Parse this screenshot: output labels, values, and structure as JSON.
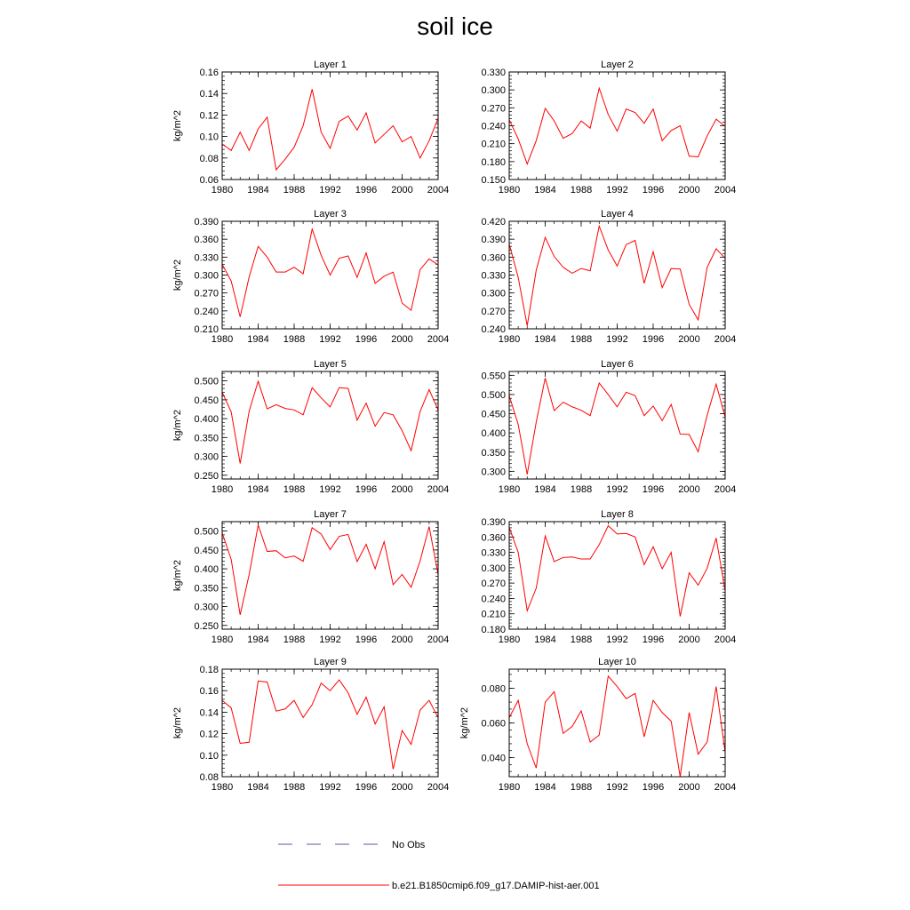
{
  "title": "soil ice",
  "legend": {
    "entries": [
      {
        "label": "No Obs",
        "color": "#5a5aa8",
        "style": "dashed"
      },
      {
        "label": "b.e21.B1850cmip6.f09_g17.DAMIP-hist-aer.001",
        "color": "#ff0000",
        "style": "solid"
      }
    ]
  },
  "chart_data": [
    {
      "type": "line",
      "title": "Layer 1",
      "ylabel": "kg/m^2",
      "xlim": [
        1980,
        2004
      ],
      "ylim": [
        0.06,
        0.16
      ],
      "x_ticks": [
        "1980",
        "1984",
        "1988",
        "1992",
        "1996",
        "2000",
        "2004"
      ],
      "y_ticks": [
        "0.06",
        "0.08",
        "0.10",
        "0.12",
        "0.14",
        "0.16"
      ],
      "x": [
        1980,
        1981,
        1982,
        1983,
        1984,
        1985,
        1986,
        1987,
        1988,
        1989,
        1990,
        1991,
        1992,
        1993,
        1994,
        1995,
        1996,
        1997,
        1998,
        1999,
        2000,
        2001,
        2002,
        2003,
        2004
      ],
      "series": [
        {
          "name": "b.e21.B1850cmip6.f09_g17.DAMIP-hist-aer.001",
          "color": "#ff0000",
          "values": [
            0.093,
            0.087,
            0.104,
            0.087,
            0.107,
            0.118,
            0.069,
            0.079,
            0.09,
            0.11,
            0.144,
            0.104,
            0.089,
            0.114,
            0.119,
            0.106,
            0.122,
            0.094,
            0.102,
            0.11,
            0.095,
            0.1,
            0.08,
            0.096,
            0.117
          ]
        }
      ]
    },
    {
      "type": "line",
      "title": "Layer 2",
      "ylabel": "",
      "xlim": [
        1980,
        2004
      ],
      "ylim": [
        0.15,
        0.33
      ],
      "x_ticks": [
        "1980",
        "1984",
        "1988",
        "1992",
        "1996",
        "2000",
        "2004"
      ],
      "y_ticks": [
        "0.150",
        "0.180",
        "0.210",
        "0.240",
        "0.270",
        "0.300",
        "0.330"
      ],
      "x": [
        1980,
        1981,
        1982,
        1983,
        1984,
        1985,
        1986,
        1987,
        1988,
        1989,
        1990,
        1991,
        1992,
        1993,
        1994,
        1995,
        1996,
        1997,
        1998,
        1999,
        2000,
        2001,
        2002,
        2003,
        2004
      ],
      "series": [
        {
          "name": "b.e21.B1850cmip6.f09_g17.DAMIP-hist-aer.001",
          "color": "#ff0000",
          "values": [
            0.25,
            0.218,
            0.176,
            0.215,
            0.269,
            0.248,
            0.219,
            0.227,
            0.248,
            0.236,
            0.303,
            0.259,
            0.231,
            0.268,
            0.262,
            0.244,
            0.268,
            0.215,
            0.232,
            0.24,
            0.189,
            0.188,
            0.223,
            0.251,
            0.239
          ]
        }
      ]
    },
    {
      "type": "line",
      "title": "Layer 3",
      "ylabel": "kg/m^2",
      "xlim": [
        1980,
        2004
      ],
      "ylim": [
        0.21,
        0.39
      ],
      "x_ticks": [
        "1980",
        "1984",
        "1988",
        "1992",
        "1996",
        "2000",
        "2004"
      ],
      "y_ticks": [
        "0.210",
        "0.240",
        "0.270",
        "0.300",
        "0.330",
        "0.360",
        "0.390"
      ],
      "x": [
        1980,
        1981,
        1982,
        1983,
        1984,
        1985,
        1986,
        1987,
        1988,
        1989,
        1990,
        1991,
        1992,
        1993,
        1994,
        1995,
        1996,
        1997,
        1998,
        1999,
        2000,
        2001,
        2002,
        2003,
        2004
      ],
      "series": [
        {
          "name": "b.e21.B1850cmip6.f09_g17.DAMIP-hist-aer.001",
          "color": "#ff0000",
          "values": [
            0.318,
            0.29,
            0.23,
            0.297,
            0.348,
            0.33,
            0.305,
            0.305,
            0.313,
            0.302,
            0.377,
            0.333,
            0.3,
            0.328,
            0.332,
            0.296,
            0.337,
            0.286,
            0.298,
            0.305,
            0.253,
            0.241,
            0.309,
            0.327,
            0.317
          ]
        }
      ]
    },
    {
      "type": "line",
      "title": "Layer 4",
      "ylabel": "",
      "xlim": [
        1980,
        2004
      ],
      "ylim": [
        0.24,
        0.42
      ],
      "x_ticks": [
        "1980",
        "1984",
        "1988",
        "1992",
        "1996",
        "2000",
        "2004"
      ],
      "y_ticks": [
        "0.240",
        "0.270",
        "0.300",
        "0.330",
        "0.360",
        "0.390",
        "0.420"
      ],
      "x": [
        1980,
        1981,
        1982,
        1983,
        1984,
        1985,
        1986,
        1987,
        1988,
        1989,
        1990,
        1991,
        1992,
        1993,
        1994,
        1995,
        1996,
        1997,
        1998,
        1999,
        2000,
        2001,
        2002,
        2003,
        2004
      ],
      "series": [
        {
          "name": "b.e21.B1850cmip6.f09_g17.DAMIP-hist-aer.001",
          "color": "#ff0000",
          "values": [
            0.382,
            0.326,
            0.245,
            0.338,
            0.393,
            0.361,
            0.343,
            0.333,
            0.341,
            0.337,
            0.412,
            0.372,
            0.345,
            0.381,
            0.388,
            0.316,
            0.369,
            0.309,
            0.341,
            0.34,
            0.281,
            0.255,
            0.343,
            0.374,
            0.358
          ]
        }
      ]
    },
    {
      "type": "line",
      "title": "Layer 5",
      "ylabel": "kg/m^2",
      "xlim": [
        1980,
        2004
      ],
      "ylim": [
        0.24,
        0.525
      ],
      "x_ticks": [
        "1980",
        "1984",
        "1988",
        "1992",
        "1996",
        "2000",
        "2004"
      ],
      "y_ticks": [
        "0.250",
        "0.300",
        "0.350",
        "0.400",
        "0.450",
        "0.500"
      ],
      "x": [
        1980,
        1981,
        1982,
        1983,
        1984,
        1985,
        1986,
        1987,
        1988,
        1989,
        1990,
        1991,
        1992,
        1993,
        1994,
        1995,
        1996,
        1997,
        1998,
        1999,
        2000,
        2001,
        2002,
        2003,
        2004
      ],
      "series": [
        {
          "name": "b.e21.B1850cmip6.f09_g17.DAMIP-hist-aer.001",
          "color": "#ff0000",
          "values": [
            0.47,
            0.418,
            0.281,
            0.42,
            0.499,
            0.426,
            0.437,
            0.427,
            0.423,
            0.41,
            0.482,
            0.455,
            0.431,
            0.482,
            0.48,
            0.396,
            0.441,
            0.38,
            0.416,
            0.41,
            0.368,
            0.315,
            0.419,
            0.477,
            0.423
          ]
        }
      ]
    },
    {
      "type": "line",
      "title": "Layer 6",
      "ylabel": "",
      "xlim": [
        1980,
        2004
      ],
      "ylim": [
        0.28,
        0.56
      ],
      "x_ticks": [
        "1980",
        "1984",
        "1988",
        "1992",
        "1996",
        "2000",
        "2004"
      ],
      "y_ticks": [
        "0.300",
        "0.350",
        "0.400",
        "0.450",
        "0.500",
        "0.550"
      ],
      "x": [
        1980,
        1981,
        1982,
        1983,
        1984,
        1985,
        1986,
        1987,
        1988,
        1989,
        1990,
        1991,
        1992,
        1993,
        1994,
        1995,
        1996,
        1997,
        1998,
        1999,
        2000,
        2001,
        2002,
        2003,
        2004
      ],
      "series": [
        {
          "name": "b.e21.B1850cmip6.f09_g17.DAMIP-hist-aer.001",
          "color": "#ff0000",
          "values": [
            0.497,
            0.422,
            0.292,
            0.428,
            0.543,
            0.458,
            0.48,
            0.468,
            0.459,
            0.445,
            0.53,
            0.5,
            0.468,
            0.506,
            0.497,
            0.445,
            0.47,
            0.432,
            0.474,
            0.397,
            0.396,
            0.351,
            0.446,
            0.527,
            0.441
          ]
        }
      ]
    },
    {
      "type": "line",
      "title": "Layer 7",
      "ylabel": "kg/m^2",
      "xlim": [
        1980,
        2004
      ],
      "ylim": [
        0.24,
        0.525
      ],
      "x_ticks": [
        "1980",
        "1984",
        "1988",
        "1992",
        "1996",
        "2000",
        "2004"
      ],
      "y_ticks": [
        "0.250",
        "0.300",
        "0.350",
        "0.400",
        "0.450",
        "0.500"
      ],
      "x": [
        1980,
        1981,
        1982,
        1983,
        1984,
        1985,
        1986,
        1987,
        1988,
        1989,
        1990,
        1991,
        1992,
        1993,
        1994,
        1995,
        1996,
        1997,
        1998,
        1999,
        2000,
        2001,
        2002,
        2003,
        2004
      ],
      "series": [
        {
          "name": "b.e21.B1850cmip6.f09_g17.DAMIP-hist-aer.001",
          "color": "#ff0000",
          "values": [
            0.495,
            0.425,
            0.278,
            0.385,
            0.516,
            0.446,
            0.448,
            0.429,
            0.434,
            0.42,
            0.509,
            0.492,
            0.451,
            0.486,
            0.491,
            0.419,
            0.465,
            0.4,
            0.472,
            0.358,
            0.385,
            0.351,
            0.421,
            0.512,
            0.385
          ]
        }
      ]
    },
    {
      "type": "line",
      "title": "Layer 8",
      "ylabel": "",
      "xlim": [
        1980,
        2004
      ],
      "ylim": [
        0.18,
        0.39
      ],
      "x_ticks": [
        "1980",
        "1984",
        "1988",
        "1992",
        "1996",
        "2000",
        "2004"
      ],
      "y_ticks": [
        "0.180",
        "0.210",
        "0.240",
        "0.270",
        "0.300",
        "0.330",
        "0.360",
        "0.390"
      ],
      "x": [
        1980,
        1981,
        1982,
        1983,
        1984,
        1985,
        1986,
        1987,
        1988,
        1989,
        1990,
        1991,
        1992,
        1993,
        1994,
        1995,
        1996,
        1997,
        1998,
        1999,
        2000,
        2001,
        2002,
        2003,
        2004
      ],
      "series": [
        {
          "name": "b.e21.B1850cmip6.f09_g17.DAMIP-hist-aer.001",
          "color": "#ff0000",
          "values": [
            0.379,
            0.33,
            0.216,
            0.26,
            0.362,
            0.312,
            0.32,
            0.321,
            0.317,
            0.317,
            0.345,
            0.382,
            0.366,
            0.367,
            0.36,
            0.306,
            0.341,
            0.298,
            0.33,
            0.205,
            0.29,
            0.266,
            0.299,
            0.358,
            0.255
          ]
        }
      ]
    },
    {
      "type": "line",
      "title": "Layer 9",
      "ylabel": "kg/m^2",
      "xlim": [
        1980,
        2004
      ],
      "ylim": [
        0.08,
        0.18
      ],
      "x_ticks": [
        "1980",
        "1984",
        "1988",
        "1992",
        "1996",
        "2000",
        "2004"
      ],
      "y_ticks": [
        "0.08",
        "0.10",
        "0.12",
        "0.14",
        "0.16",
        "0.18"
      ],
      "x": [
        1980,
        1981,
        1982,
        1983,
        1984,
        1985,
        1986,
        1987,
        1988,
        1989,
        1990,
        1991,
        1992,
        1993,
        1994,
        1995,
        1996,
        1997,
        1998,
        1999,
        2000,
        2001,
        2002,
        2003,
        2004
      ],
      "series": [
        {
          "name": "b.e21.B1850cmip6.f09_g17.DAMIP-hist-aer.001",
          "color": "#ff0000",
          "values": [
            0.151,
            0.144,
            0.111,
            0.112,
            0.169,
            0.168,
            0.141,
            0.143,
            0.151,
            0.135,
            0.147,
            0.167,
            0.16,
            0.17,
            0.158,
            0.138,
            0.154,
            0.129,
            0.145,
            0.087,
            0.123,
            0.11,
            0.142,
            0.151,
            0.135
          ]
        }
      ]
    },
    {
      "type": "line",
      "title": "Layer 10",
      "ylabel": "kg/m^2",
      "xlim": [
        1980,
        2004
      ],
      "ylim": [
        0.029,
        0.091
      ],
      "x_ticks": [
        "1980",
        "1984",
        "1988",
        "1992",
        "1996",
        "2000",
        "2004"
      ],
      "y_ticks": [
        "0.040",
        "0.060",
        "0.080"
      ],
      "x": [
        1980,
        1981,
        1982,
        1983,
        1984,
        1985,
        1986,
        1987,
        1988,
        1989,
        1990,
        1991,
        1992,
        1993,
        1994,
        1995,
        1996,
        1997,
        1998,
        1999,
        2000,
        2001,
        2002,
        2003,
        2004
      ],
      "series": [
        {
          "name": "b.e21.B1850cmip6.f09_g17.DAMIP-hist-aer.001",
          "color": "#ff0000",
          "values": [
            0.063,
            0.073,
            0.048,
            0.034,
            0.072,
            0.078,
            0.054,
            0.058,
            0.067,
            0.049,
            0.053,
            0.087,
            0.081,
            0.074,
            0.077,
            0.052,
            0.073,
            0.066,
            0.061,
            0.029,
            0.066,
            0.042,
            0.049,
            0.081,
            0.043
          ]
        }
      ]
    }
  ]
}
